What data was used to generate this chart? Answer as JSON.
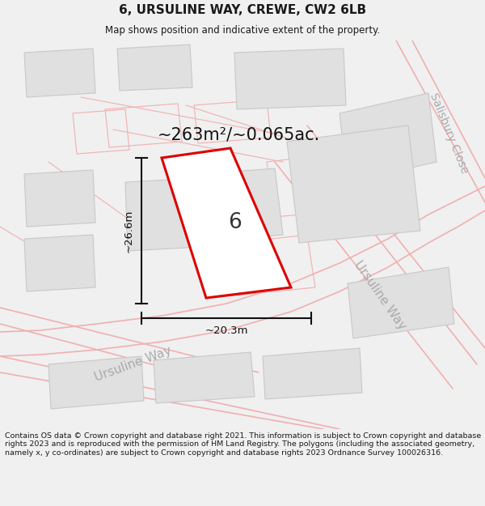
{
  "title": "6, URSULINE WAY, CREWE, CW2 6LB",
  "subtitle": "Map shows position and indicative extent of the property.",
  "footer": "Contains OS data © Crown copyright and database right 2021. This information is subject to Crown copyright and database rights 2023 and is reproduced with the permission of HM Land Registry. The polygons (including the associated geometry, namely x, y co-ordinates) are subject to Crown copyright and database rights 2023 Ordnance Survey 100026316.",
  "area_label": "~263m²/~0.065ac.",
  "plot_number": "6",
  "dim_width": "~20.3m",
  "dim_height": "~26.6m",
  "street_bottom": "Ursuline Way",
  "street_right": "Ursuline Way",
  "street_top_right": "Salisbury Close",
  "bg_color": "#f0f0f0",
  "map_bg": "#ffffff",
  "title_color": "#1a1a1a",
  "footer_color": "#1a1a1a",
  "plot_fill": "#ffffff",
  "plot_edge": "#dd0000",
  "road_line": "#f0b0b0",
  "building_fill": "#e0e0e0",
  "building_edge": "#c8c8c8",
  "dim_color": "#111111",
  "street_color": "#aaaaaa",
  "area_color": "#111111"
}
